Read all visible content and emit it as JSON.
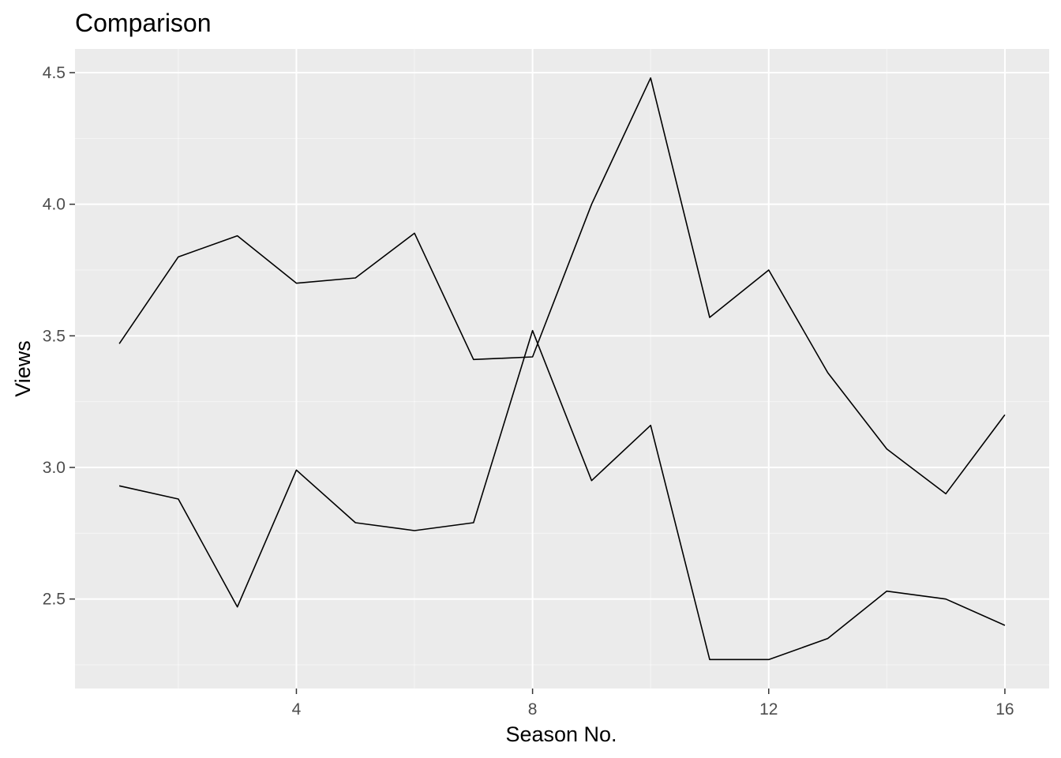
{
  "chart_data": {
    "type": "line",
    "title": "Comparison",
    "xlabel": "Season No.",
    "ylabel": "Views",
    "x": [
      1,
      2,
      3,
      4,
      5,
      6,
      7,
      8,
      9,
      10,
      11,
      12,
      13,
      14,
      15,
      16
    ],
    "series": [
      {
        "values": [
          3.47,
          3.8,
          3.88,
          3.7,
          3.72,
          3.89,
          3.41,
          3.42,
          4.0,
          4.48,
          3.57,
          3.75,
          3.36,
          3.07,
          2.9,
          3.2
        ]
      },
      {
        "values": [
          2.93,
          2.88,
          2.47,
          2.99,
          2.79,
          2.76,
          2.79,
          3.52,
          2.95,
          3.16,
          2.27,
          2.27,
          2.35,
          2.53,
          2.5,
          2.4
        ]
      }
    ],
    "xlim": [
      0.25,
      16.75
    ],
    "ylim": [
      2.16,
      4.59
    ],
    "x_ticks": [
      4,
      8,
      12,
      16
    ],
    "x_tick_labels": [
      "4",
      "8",
      "12",
      "16"
    ],
    "y_ticks": [
      2.5,
      3.0,
      3.5,
      4.0,
      4.5
    ],
    "y_tick_labels": [
      "2.5",
      "3.0",
      "3.5",
      "4.0",
      "4.5"
    ],
    "grid": true,
    "legend": "none",
    "colors": {
      "panel_background": "#ebebeb",
      "grid_major": "#ffffff",
      "grid_minor": "#f5f5f5",
      "line": "#000000",
      "tick_label": "#4d4d4d",
      "tick_mark": "#333333"
    }
  }
}
